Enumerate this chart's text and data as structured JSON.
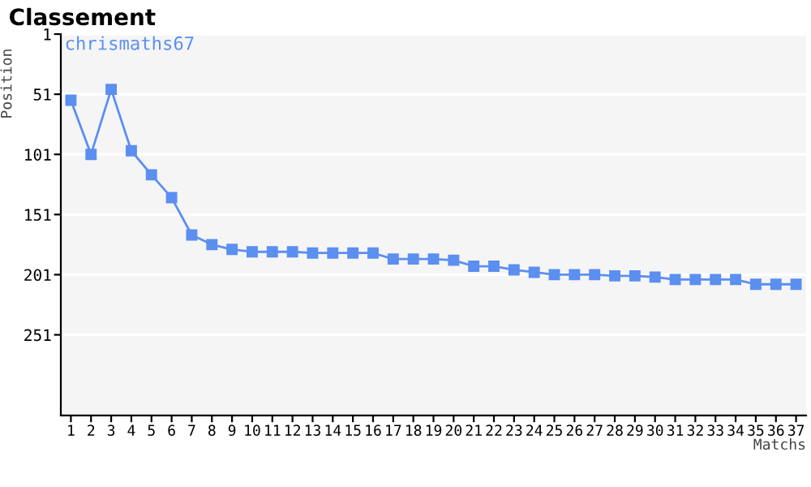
{
  "chart_data": {
    "type": "line",
    "title": "Classement",
    "xlabel": "Matchs",
    "ylabel": "Position",
    "categories": [
      "1",
      "2",
      "3",
      "4",
      "5",
      "6",
      "7",
      "8",
      "9",
      "10",
      "11",
      "12",
      "13",
      "14",
      "15",
      "16",
      "17",
      "18",
      "19",
      "20",
      "21",
      "22",
      "23",
      "24",
      "25",
      "26",
      "27",
      "28",
      "29",
      "30",
      "31",
      "32",
      "33",
      "34",
      "35",
      "36",
      "37"
    ],
    "series": [
      {
        "name": "chrismaths67",
        "color": "#5b8ff0",
        "values": [
          56,
          101,
          47,
          98,
          118,
          137,
          168,
          176,
          180,
          182,
          182,
          182,
          183,
          183,
          183,
          183,
          188,
          188,
          188,
          189,
          194,
          194,
          197,
          199,
          201,
          201,
          201,
          202,
          202,
          203,
          205,
          205,
          205,
          205,
          209,
          209,
          209
        ]
      }
    ],
    "ylim": [
      318,
      1
    ],
    "yticks": [
      1,
      51,
      101,
      151,
      201,
      251
    ],
    "grid": "y",
    "marker": "square",
    "line_style": "solid",
    "legend": "top left"
  }
}
